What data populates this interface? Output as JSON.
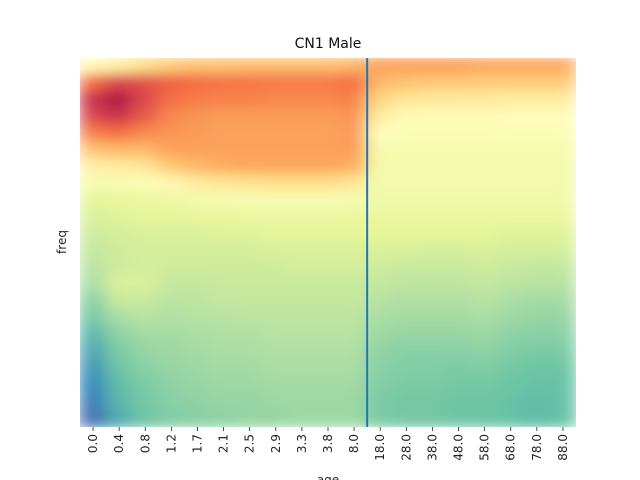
{
  "chart_data": {
    "type": "heatmap",
    "title": "CN1 Male",
    "xlabel": "age",
    "ylabel": "freq",
    "grid": false,
    "legend": "none",
    "colormap": "Spectral",
    "x_tick_labels": [
      "0.0",
      "0.4",
      "0.8",
      "1.2",
      "1.7",
      "2.1",
      "2.5",
      "2.9",
      "3.3",
      "3.8",
      "8.0",
      "18.0",
      "28.0",
      "38.0",
      "48.0",
      "58.0",
      "68.0",
      "78.0",
      "88.0"
    ],
    "vertical_marker": {
      "between": [
        "8.0",
        "18.0"
      ],
      "color": "#1f77b4"
    },
    "columns": [
      {
        "age": "0.0",
        "values": [
          0.52,
          0.8,
          0.92,
          0.88,
          0.78,
          0.66,
          0.55,
          0.46,
          0.4,
          0.38,
          0.36,
          0.34,
          0.32,
          0.3,
          0.25,
          0.22,
          0.18,
          0.15,
          0.12,
          0.1,
          0.08,
          0.06
        ]
      },
      {
        "age": "0.4",
        "values": [
          0.55,
          0.88,
          0.97,
          0.92,
          0.8,
          0.68,
          0.56,
          0.47,
          0.41,
          0.39,
          0.37,
          0.36,
          0.36,
          0.38,
          0.35,
          0.3,
          0.26,
          0.23,
          0.21,
          0.19,
          0.18,
          0.16
        ]
      },
      {
        "age": "0.8",
        "values": [
          0.6,
          0.86,
          0.88,
          0.84,
          0.76,
          0.68,
          0.58,
          0.48,
          0.42,
          0.4,
          0.38,
          0.37,
          0.37,
          0.38,
          0.35,
          0.32,
          0.29,
          0.27,
          0.25,
          0.23,
          0.22,
          0.21
        ]
      },
      {
        "age": "1.2",
        "values": [
          0.64,
          0.82,
          0.8,
          0.76,
          0.74,
          0.72,
          0.65,
          0.52,
          0.43,
          0.4,
          0.38,
          0.37,
          0.36,
          0.34,
          0.33,
          0.31,
          0.29,
          0.28,
          0.27,
          0.26,
          0.25,
          0.24
        ]
      },
      {
        "age": "1.7",
        "values": [
          0.66,
          0.8,
          0.78,
          0.74,
          0.73,
          0.72,
          0.68,
          0.56,
          0.45,
          0.41,
          0.38,
          0.37,
          0.36,
          0.34,
          0.33,
          0.32,
          0.3,
          0.29,
          0.28,
          0.27,
          0.26,
          0.25
        ]
      },
      {
        "age": "2.1",
        "values": [
          0.66,
          0.79,
          0.77,
          0.73,
          0.72,
          0.72,
          0.7,
          0.58,
          0.46,
          0.41,
          0.39,
          0.37,
          0.36,
          0.35,
          0.34,
          0.32,
          0.31,
          0.3,
          0.29,
          0.28,
          0.27,
          0.26
        ]
      },
      {
        "age": "2.5",
        "values": [
          0.67,
          0.79,
          0.77,
          0.73,
          0.72,
          0.72,
          0.71,
          0.59,
          0.47,
          0.42,
          0.39,
          0.37,
          0.36,
          0.35,
          0.34,
          0.33,
          0.31,
          0.3,
          0.29,
          0.28,
          0.27,
          0.27
        ]
      },
      {
        "age": "2.9",
        "values": [
          0.67,
          0.78,
          0.76,
          0.73,
          0.72,
          0.72,
          0.71,
          0.6,
          0.47,
          0.42,
          0.4,
          0.38,
          0.36,
          0.35,
          0.34,
          0.33,
          0.32,
          0.31,
          0.3,
          0.29,
          0.28,
          0.27
        ]
      },
      {
        "age": "3.3",
        "values": [
          0.67,
          0.78,
          0.76,
          0.73,
          0.72,
          0.72,
          0.71,
          0.6,
          0.47,
          0.42,
          0.4,
          0.38,
          0.37,
          0.35,
          0.34,
          0.33,
          0.32,
          0.31,
          0.3,
          0.29,
          0.28,
          0.28
        ]
      },
      {
        "age": "3.8",
        "values": [
          0.67,
          0.78,
          0.76,
          0.73,
          0.72,
          0.72,
          0.71,
          0.6,
          0.47,
          0.42,
          0.4,
          0.38,
          0.37,
          0.35,
          0.34,
          0.33,
          0.32,
          0.31,
          0.3,
          0.29,
          0.28,
          0.28
        ]
      },
      {
        "age": "8.0",
        "values": [
          0.68,
          0.8,
          0.77,
          0.74,
          0.73,
          0.73,
          0.7,
          0.58,
          0.46,
          0.42,
          0.4,
          0.38,
          0.37,
          0.35,
          0.34,
          0.33,
          0.32,
          0.31,
          0.3,
          0.29,
          0.28,
          0.28
        ]
      },
      {
        "age": "18.0",
        "values": [
          0.72,
          0.68,
          0.62,
          0.56,
          0.5,
          0.46,
          0.45,
          0.45,
          0.44,
          0.42,
          0.4,
          0.38,
          0.36,
          0.34,
          0.32,
          0.3,
          0.28,
          0.26,
          0.25,
          0.24,
          0.23,
          0.23
        ]
      },
      {
        "age": "28.0",
        "values": [
          0.72,
          0.66,
          0.58,
          0.52,
          0.48,
          0.46,
          0.45,
          0.45,
          0.44,
          0.42,
          0.4,
          0.38,
          0.35,
          0.33,
          0.31,
          0.29,
          0.27,
          0.25,
          0.24,
          0.23,
          0.22,
          0.22
        ]
      },
      {
        "age": "38.0",
        "values": [
          0.72,
          0.65,
          0.57,
          0.52,
          0.48,
          0.46,
          0.45,
          0.45,
          0.44,
          0.42,
          0.4,
          0.37,
          0.35,
          0.33,
          0.31,
          0.29,
          0.27,
          0.25,
          0.24,
          0.23,
          0.22,
          0.22
        ]
      },
      {
        "age": "48.0",
        "values": [
          0.72,
          0.65,
          0.57,
          0.52,
          0.48,
          0.46,
          0.45,
          0.45,
          0.44,
          0.42,
          0.4,
          0.37,
          0.35,
          0.33,
          0.31,
          0.29,
          0.27,
          0.25,
          0.23,
          0.22,
          0.21,
          0.21
        ]
      },
      {
        "age": "58.0",
        "values": [
          0.71,
          0.64,
          0.57,
          0.52,
          0.48,
          0.46,
          0.45,
          0.45,
          0.44,
          0.42,
          0.4,
          0.38,
          0.36,
          0.34,
          0.32,
          0.3,
          0.28,
          0.26,
          0.24,
          0.22,
          0.21,
          0.21
        ]
      },
      {
        "age": "68.0",
        "values": [
          0.71,
          0.64,
          0.56,
          0.51,
          0.48,
          0.46,
          0.45,
          0.45,
          0.44,
          0.42,
          0.39,
          0.37,
          0.35,
          0.33,
          0.3,
          0.28,
          0.26,
          0.24,
          0.22,
          0.21,
          0.2,
          0.2
        ]
      },
      {
        "age": "78.0",
        "values": [
          0.71,
          0.64,
          0.56,
          0.51,
          0.48,
          0.46,
          0.45,
          0.45,
          0.44,
          0.42,
          0.39,
          0.37,
          0.34,
          0.32,
          0.29,
          0.27,
          0.25,
          0.23,
          0.21,
          0.2,
          0.19,
          0.19
        ]
      },
      {
        "age": "88.0",
        "values": [
          0.71,
          0.64,
          0.56,
          0.51,
          0.48,
          0.46,
          0.45,
          0.45,
          0.44,
          0.42,
          0.39,
          0.37,
          0.34,
          0.32,
          0.29,
          0.27,
          0.25,
          0.23,
          0.21,
          0.2,
          0.2,
          0.2
        ]
      }
    ]
  }
}
